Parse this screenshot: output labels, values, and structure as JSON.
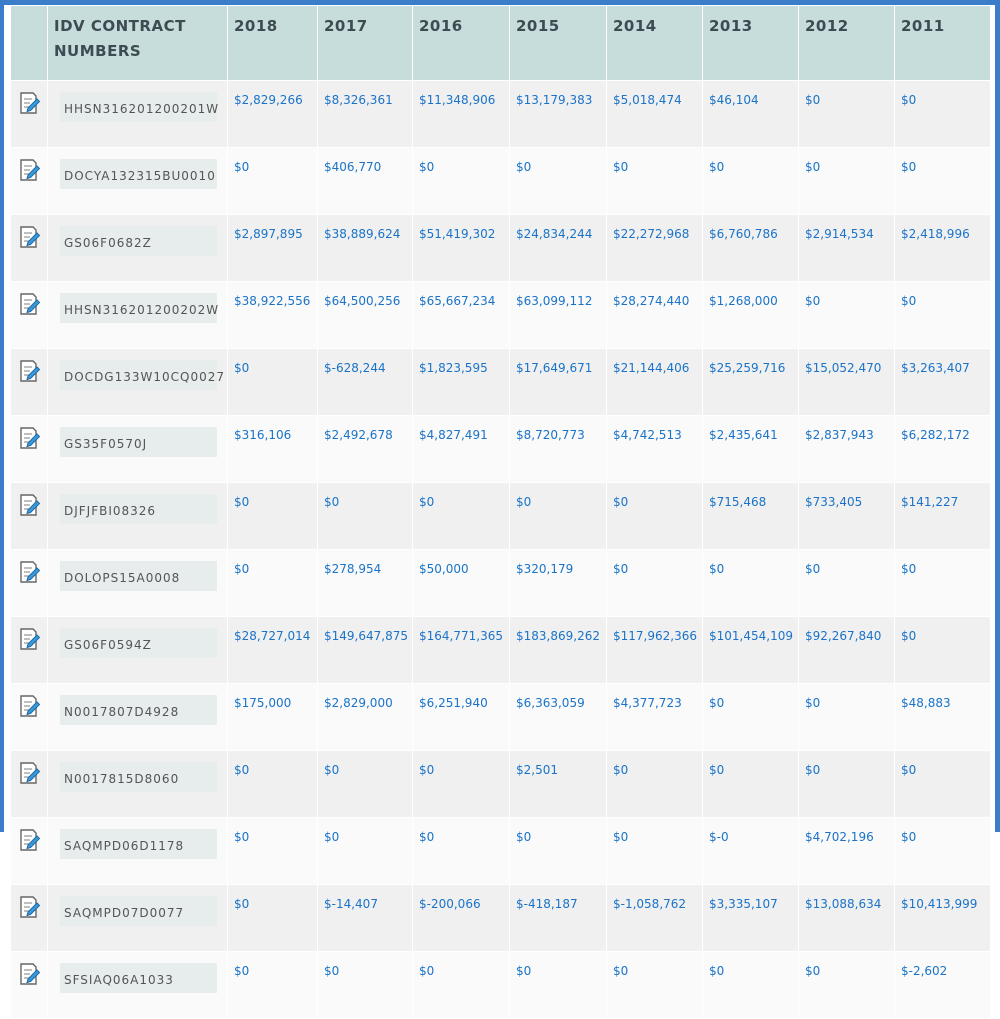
{
  "table": {
    "header": [
      "IDV CONTRACT NUMBERS",
      "2018",
      "2017",
      "2016",
      "2015",
      "2014",
      "2013",
      "2012",
      "2011"
    ],
    "rows": [
      {
        "contract": "HHSN316201200201W",
        "values": [
          "$2,829,266",
          "$8,326,361",
          "$11,348,906",
          "$13,179,383",
          "$5,018,474",
          "$46,104",
          "$0",
          "$0"
        ]
      },
      {
        "contract": "DOCYA132315BU0010",
        "values": [
          "$0",
          "$406,770",
          "$0",
          "$0",
          "$0",
          "$0",
          "$0",
          "$0"
        ]
      },
      {
        "contract": "GS06F0682Z",
        "values": [
          "$2,897,895",
          "$38,889,624",
          "$51,419,302",
          "$24,834,244",
          "$22,272,968",
          "$6,760,786",
          "$2,914,534",
          "$2,418,996"
        ]
      },
      {
        "contract": "HHSN316201200202W",
        "values": [
          "$38,922,556",
          "$64,500,256",
          "$65,667,234",
          "$63,099,112",
          "$28,274,440",
          "$1,268,000",
          "$0",
          "$0"
        ]
      },
      {
        "contract": "DOCDG133W10CQ0027",
        "values": [
          "$0",
          "$-628,244",
          "$1,823,595",
          "$17,649,671",
          "$21,144,406",
          "$25,259,716",
          "$15,052,470",
          "$3,263,407"
        ]
      },
      {
        "contract": "GS35F0570J",
        "values": [
          "$316,106",
          "$2,492,678",
          "$4,827,491",
          "$8,720,773",
          "$4,742,513",
          "$2,435,641",
          "$2,837,943",
          "$6,282,172"
        ]
      },
      {
        "contract": "DJFJFBI08326",
        "values": [
          "$0",
          "$0",
          "$0",
          "$0",
          "$0",
          "$715,468",
          "$733,405",
          "$141,227"
        ]
      },
      {
        "contract": "DOLOPS15A0008",
        "values": [
          "$0",
          "$278,954",
          "$50,000",
          "$320,179",
          "$0",
          "$0",
          "$0",
          "$0"
        ]
      },
      {
        "contract": "GS06F0594Z",
        "values": [
          "$28,727,014",
          "$149,647,875",
          "$164,771,365",
          "$183,869,262",
          "$117,962,366",
          "$101,454,109",
          "$92,267,840",
          "$0"
        ]
      },
      {
        "contract": "N0017807D4928",
        "values": [
          "$175,000",
          "$2,829,000",
          "$6,251,940",
          "$6,363,059",
          "$4,377,723",
          "$0",
          "$0",
          "$48,883"
        ]
      },
      {
        "contract": "N0017815D8060",
        "values": [
          "$0",
          "$0",
          "$0",
          "$2,501",
          "$0",
          "$0",
          "$0",
          "$0"
        ]
      },
      {
        "contract": "SAQMPD06D1178",
        "values": [
          "$0",
          "$0",
          "$0",
          "$0",
          "$0",
          "$-0",
          "$4,702,196",
          "$0"
        ]
      },
      {
        "contract": "SAQMPD07D0077",
        "values": [
          "$0",
          "$-14,407",
          "$-200,066",
          "$-418,187",
          "$-1,058,762",
          "$3,335,107",
          "$13,088,634",
          "$10,413,999"
        ]
      },
      {
        "contract": "SFSIAQ06A1033",
        "values": [
          "$0",
          "$0",
          "$0",
          "$0",
          "$0",
          "$0",
          "$0",
          "$-2,602"
        ]
      }
    ]
  }
}
